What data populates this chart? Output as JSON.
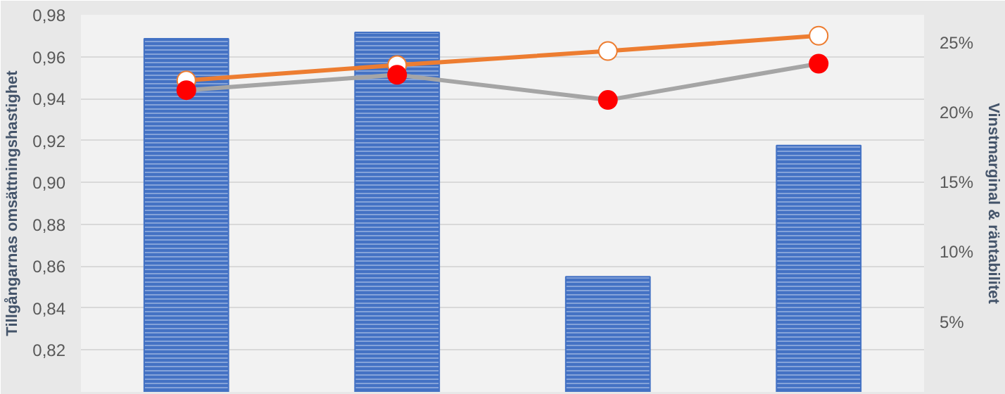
{
  "chart_data": {
    "type": "bar",
    "ylabel": "Tillgångarnas omsättningshastighet",
    "y2label": "Vinstmarginal & räntabilitet",
    "categories": [
      null,
      null,
      null,
      null
    ],
    "series": [
      {
        "color": "#4472c4",
        "values": [
          0.9686,
          0.9716,
          0.855,
          0.9176
        ]
      },
      {
        "type": "line",
        "axis": "y2",
        "color": "#ed7d31",
        "marker": "circle",
        "values": [
          22.3,
          23.4,
          24.4,
          25.5
        ]
      },
      {
        "type": "line",
        "axis": "y2",
        "color": "#a5a5a5",
        "colors": [
          "#ff0000",
          "#ff0000",
          "#ff0000",
          "#ff0000"
        ],
        "marker": "circle",
        "values": [
          21.6,
          22.7,
          20.9,
          23.5
        ]
      }
    ],
    "ylim": [
      0.8,
      0.98
    ],
    "yticks": [
      {
        "value": 0.82,
        "label": "0,82"
      },
      {
        "value": 0.84,
        "label": "0,84"
      },
      {
        "value": 0.86,
        "label": "0,86"
      },
      {
        "value": 0.88,
        "label": "0,88"
      },
      {
        "value": 0.9,
        "label": "0,90"
      },
      {
        "value": 0.92,
        "label": "0,92"
      },
      {
        "value": 0.94,
        "label": "0,94"
      },
      {
        "value": 0.96,
        "label": "0,96"
      },
      {
        "value": 0.98,
        "label": "0,98"
      }
    ],
    "y2lim": [
      0,
      27
    ],
    "y2ticks": [
      {
        "value": 5,
        "label": "5%"
      },
      {
        "value": 10,
        "label": "10%"
      },
      {
        "value": 15,
        "label": "15%"
      },
      {
        "value": 20,
        "label": "20%"
      },
      {
        "value": 25,
        "label": "25%"
      }
    ],
    "grid": "y"
  }
}
